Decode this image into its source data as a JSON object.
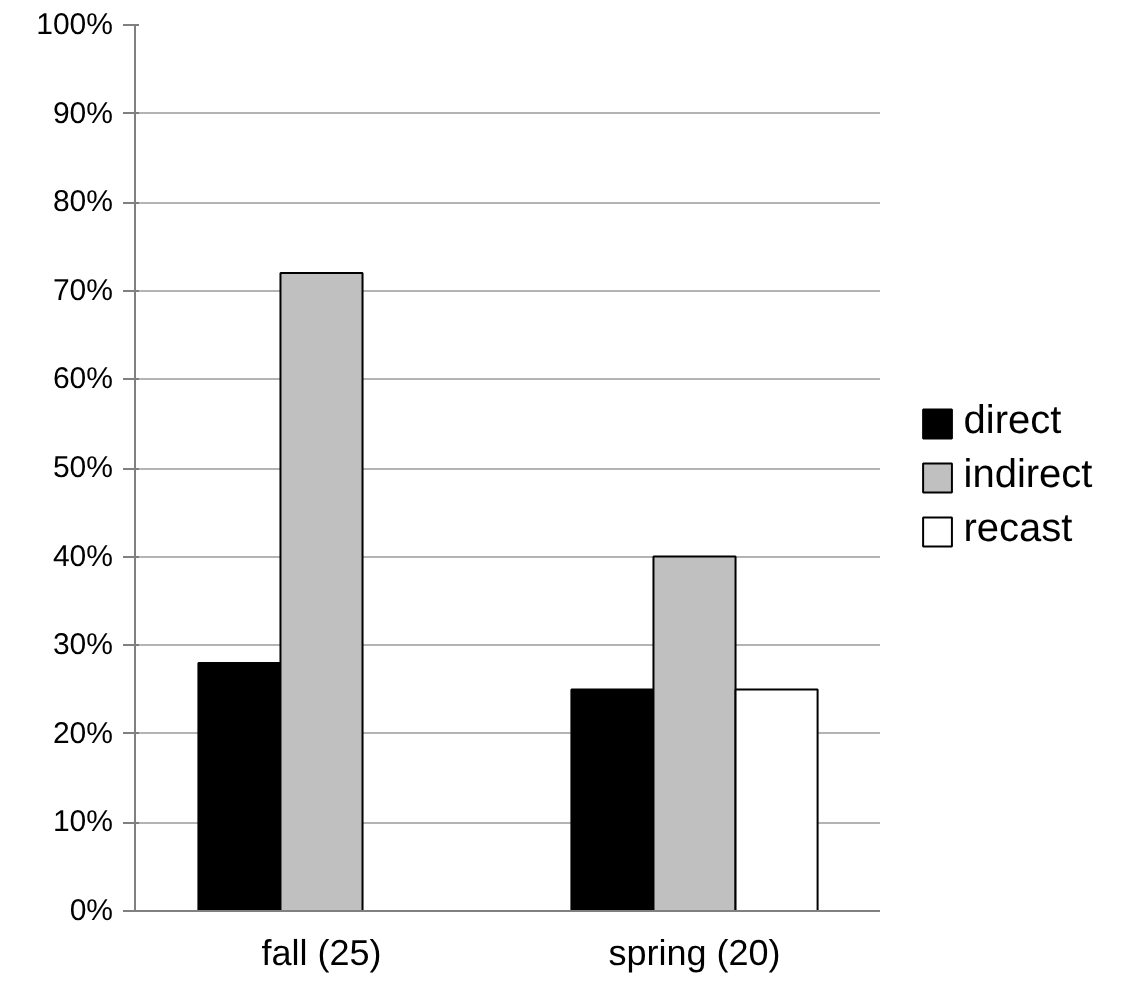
{
  "chart_data": {
    "type": "bar",
    "categories": [
      "fall (25)",
      "spring (20)"
    ],
    "series": [
      {
        "name": "direct",
        "color": "#000000",
        "values": [
          28,
          25
        ]
      },
      {
        "name": "indirect",
        "color": "#c0c0c0",
        "values": [
          72,
          40
        ]
      },
      {
        "name": "recast",
        "color": "#ffffff",
        "values": [
          null,
          25
        ]
      }
    ],
    "ylim": [
      0,
      100
    ],
    "yticks": [
      {
        "value": 0,
        "label": "0%"
      },
      {
        "value": 10,
        "label": "10%"
      },
      {
        "value": 20,
        "label": "20%"
      },
      {
        "value": 30,
        "label": "30%"
      },
      {
        "value": 40,
        "label": "40%"
      },
      {
        "value": 50,
        "label": "50%"
      },
      {
        "value": 60,
        "label": "60%"
      },
      {
        "value": 70,
        "label": "70%"
      },
      {
        "value": 80,
        "label": "80%"
      },
      {
        "value": 90,
        "label": "90%"
      },
      {
        "value": 100,
        "label": "100%"
      }
    ],
    "grid": "y",
    "legend": "right"
  }
}
